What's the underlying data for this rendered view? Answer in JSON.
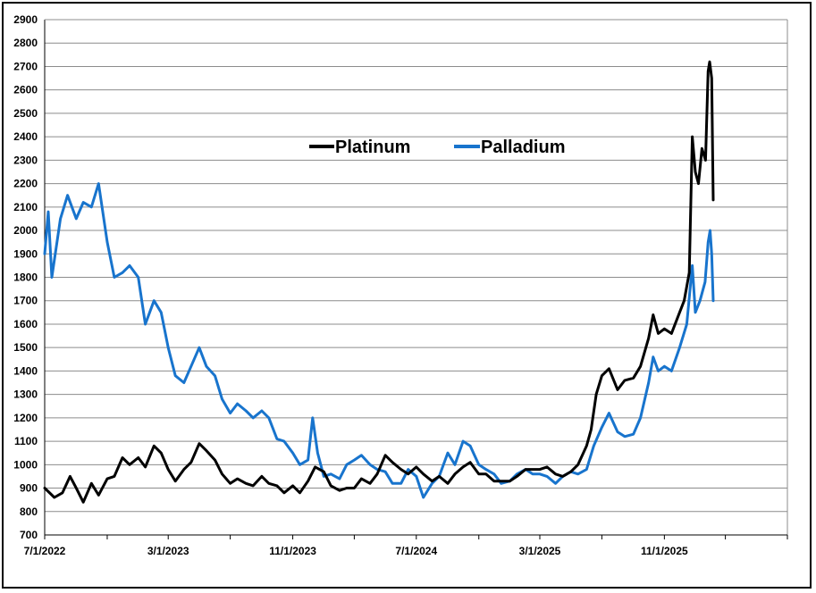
{
  "chart_data": {
    "type": "line",
    "title": "",
    "xlabel": "",
    "ylabel": "",
    "ylim": [
      700,
      2900
    ],
    "xlim": [
      "2022-07-01",
      "2026-07-01"
    ],
    "y_ticks": [
      "700",
      "800",
      "900",
      "1000",
      "1100",
      "1200",
      "1300",
      "1400",
      "1500",
      "1600",
      "1700",
      "1800",
      "1900",
      "2000",
      "2100",
      "2200",
      "2300",
      "2400",
      "2500",
      "2600",
      "2700",
      "2800",
      "2900"
    ],
    "x_ticks": [
      "7/1/2022",
      "3/1/2023",
      "11/1/2023",
      "7/1/2024",
      "3/1/2025",
      "11/1/2025"
    ],
    "grid": "horizontal",
    "legend": "top-center",
    "series": [
      {
        "name": "Platinum",
        "color": "#000000",
        "points": [
          [
            "2022-07-01",
            900
          ],
          [
            "2022-07-20",
            860
          ],
          [
            "2022-08-05",
            880
          ],
          [
            "2022-08-20",
            950
          ],
          [
            "2022-09-01",
            900
          ],
          [
            "2022-09-15",
            840
          ],
          [
            "2022-10-01",
            920
          ],
          [
            "2022-10-15",
            870
          ],
          [
            "2022-11-01",
            940
          ],
          [
            "2022-11-15",
            950
          ],
          [
            "2022-12-01",
            1030
          ],
          [
            "2022-12-15",
            1000
          ],
          [
            "2023-01-01",
            1030
          ],
          [
            "2023-01-15",
            990
          ],
          [
            "2023-02-01",
            1080
          ],
          [
            "2023-02-15",
            1050
          ],
          [
            "2023-03-01",
            980
          ],
          [
            "2023-03-15",
            930
          ],
          [
            "2023-04-01",
            980
          ],
          [
            "2023-04-15",
            1010
          ],
          [
            "2023-05-01",
            1090
          ],
          [
            "2023-05-15",
            1060
          ],
          [
            "2023-06-01",
            1020
          ],
          [
            "2023-06-15",
            960
          ],
          [
            "2023-07-01",
            920
          ],
          [
            "2023-07-15",
            940
          ],
          [
            "2023-08-01",
            920
          ],
          [
            "2023-08-15",
            910
          ],
          [
            "2023-09-01",
            950
          ],
          [
            "2023-09-15",
            920
          ],
          [
            "2023-10-01",
            910
          ],
          [
            "2023-10-15",
            880
          ],
          [
            "2023-11-01",
            910
          ],
          [
            "2023-11-15",
            880
          ],
          [
            "2023-12-01",
            930
          ],
          [
            "2023-12-15",
            990
          ],
          [
            "2024-01-01",
            970
          ],
          [
            "2024-01-15",
            910
          ],
          [
            "2024-02-01",
            890
          ],
          [
            "2024-02-15",
            900
          ],
          [
            "2024-03-01",
            900
          ],
          [
            "2024-03-15",
            940
          ],
          [
            "2024-04-01",
            920
          ],
          [
            "2024-04-15",
            960
          ],
          [
            "2024-05-01",
            1040
          ],
          [
            "2024-05-15",
            1010
          ],
          [
            "2024-06-01",
            980
          ],
          [
            "2024-06-15",
            960
          ],
          [
            "2024-07-01",
            990
          ],
          [
            "2024-07-15",
            960
          ],
          [
            "2024-08-01",
            930
          ],
          [
            "2024-08-15",
            950
          ],
          [
            "2024-09-01",
            920
          ],
          [
            "2024-09-15",
            960
          ],
          [
            "2024-10-01",
            990
          ],
          [
            "2024-10-15",
            1010
          ],
          [
            "2024-11-01",
            960
          ],
          [
            "2024-11-15",
            960
          ],
          [
            "2024-12-01",
            930
          ],
          [
            "2024-12-15",
            930
          ],
          [
            "2025-01-01",
            930
          ],
          [
            "2025-01-15",
            950
          ],
          [
            "2025-02-01",
            980
          ],
          [
            "2025-02-15",
            980
          ],
          [
            "2025-03-01",
            980
          ],
          [
            "2025-03-15",
            990
          ],
          [
            "2025-04-01",
            960
          ],
          [
            "2025-04-15",
            950
          ],
          [
            "2025-05-01",
            970
          ],
          [
            "2025-05-15",
            1000
          ],
          [
            "2025-06-01",
            1080
          ],
          [
            "2025-06-10",
            1150
          ],
          [
            "2025-06-20",
            1300
          ],
          [
            "2025-07-01",
            1380
          ],
          [
            "2025-07-15",
            1410
          ],
          [
            "2025-08-01",
            1320
          ],
          [
            "2025-08-15",
            1360
          ],
          [
            "2025-09-01",
            1370
          ],
          [
            "2025-09-15",
            1420
          ],
          [
            "2025-10-01",
            1540
          ],
          [
            "2025-10-10",
            1640
          ],
          [
            "2025-10-20",
            1560
          ],
          [
            "2025-11-01",
            1580
          ],
          [
            "2025-11-15",
            1560
          ],
          [
            "2025-12-01",
            1650
          ],
          [
            "2025-12-10",
            1700
          ],
          [
            "2025-12-20",
            1820
          ],
          [
            "2025-12-26",
            2400
          ],
          [
            "2026-01-01",
            2250
          ],
          [
            "2026-01-07",
            2200
          ],
          [
            "2026-01-14",
            2350
          ],
          [
            "2026-01-21",
            2300
          ],
          [
            "2026-01-26",
            2680
          ],
          [
            "2026-01-29",
            2720
          ],
          [
            "2026-02-02",
            2650
          ],
          [
            "2026-02-05",
            2130
          ]
        ]
      },
      {
        "name": "Palladium",
        "color": "#1874cd",
        "points": [
          [
            "2022-07-01",
            1900
          ],
          [
            "2022-07-08",
            2080
          ],
          [
            "2022-07-15",
            1800
          ],
          [
            "2022-08-01",
            2050
          ],
          [
            "2022-08-15",
            2150
          ],
          [
            "2022-09-01",
            2050
          ],
          [
            "2022-09-15",
            2120
          ],
          [
            "2022-10-01",
            2100
          ],
          [
            "2022-10-15",
            2200
          ],
          [
            "2022-11-01",
            1950
          ],
          [
            "2022-11-15",
            1800
          ],
          [
            "2022-12-01",
            1820
          ],
          [
            "2022-12-15",
            1850
          ],
          [
            "2023-01-01",
            1800
          ],
          [
            "2023-01-15",
            1600
          ],
          [
            "2023-02-01",
            1700
          ],
          [
            "2023-02-15",
            1650
          ],
          [
            "2023-03-01",
            1500
          ],
          [
            "2023-03-15",
            1380
          ],
          [
            "2023-04-01",
            1350
          ],
          [
            "2023-04-15",
            1420
          ],
          [
            "2023-05-01",
            1500
          ],
          [
            "2023-05-15",
            1420
          ],
          [
            "2023-06-01",
            1380
          ],
          [
            "2023-06-15",
            1280
          ],
          [
            "2023-07-01",
            1220
          ],
          [
            "2023-07-15",
            1260
          ],
          [
            "2023-08-01",
            1230
          ],
          [
            "2023-08-15",
            1200
          ],
          [
            "2023-09-01",
            1230
          ],
          [
            "2023-09-15",
            1200
          ],
          [
            "2023-10-01",
            1110
          ],
          [
            "2023-10-15",
            1100
          ],
          [
            "2023-11-01",
            1050
          ],
          [
            "2023-11-15",
            1000
          ],
          [
            "2023-12-01",
            1020
          ],
          [
            "2023-12-10",
            1200
          ],
          [
            "2023-12-20",
            1050
          ],
          [
            "2024-01-01",
            950
          ],
          [
            "2024-01-15",
            960
          ],
          [
            "2024-02-01",
            940
          ],
          [
            "2024-02-15",
            1000
          ],
          [
            "2024-03-01",
            1020
          ],
          [
            "2024-03-15",
            1040
          ],
          [
            "2024-04-01",
            1000
          ],
          [
            "2024-04-15",
            980
          ],
          [
            "2024-05-01",
            970
          ],
          [
            "2024-05-15",
            920
          ],
          [
            "2024-06-01",
            920
          ],
          [
            "2024-06-15",
            980
          ],
          [
            "2024-07-01",
            950
          ],
          [
            "2024-07-15",
            860
          ],
          [
            "2024-08-01",
            920
          ],
          [
            "2024-08-15",
            950
          ],
          [
            "2024-09-01",
            1050
          ],
          [
            "2024-09-15",
            1000
          ],
          [
            "2024-10-01",
            1100
          ],
          [
            "2024-10-15",
            1080
          ],
          [
            "2024-11-01",
            1000
          ],
          [
            "2024-11-15",
            980
          ],
          [
            "2024-12-01",
            960
          ],
          [
            "2024-12-15",
            920
          ],
          [
            "2025-01-01",
            930
          ],
          [
            "2025-01-15",
            960
          ],
          [
            "2025-02-01",
            980
          ],
          [
            "2025-02-15",
            960
          ],
          [
            "2025-03-01",
            960
          ],
          [
            "2025-03-15",
            950
          ],
          [
            "2025-04-01",
            920
          ],
          [
            "2025-04-15",
            950
          ],
          [
            "2025-05-01",
            970
          ],
          [
            "2025-05-15",
            960
          ],
          [
            "2025-06-01",
            980
          ],
          [
            "2025-06-15",
            1080
          ],
          [
            "2025-07-01",
            1160
          ],
          [
            "2025-07-15",
            1220
          ],
          [
            "2025-08-01",
            1140
          ],
          [
            "2025-08-15",
            1120
          ],
          [
            "2025-09-01",
            1130
          ],
          [
            "2025-09-15",
            1200
          ],
          [
            "2025-10-01",
            1350
          ],
          [
            "2025-10-10",
            1460
          ],
          [
            "2025-10-20",
            1400
          ],
          [
            "2025-11-01",
            1420
          ],
          [
            "2025-11-15",
            1400
          ],
          [
            "2025-12-01",
            1500
          ],
          [
            "2025-12-15",
            1600
          ],
          [
            "2025-12-26",
            1850
          ],
          [
            "2026-01-01",
            1650
          ],
          [
            "2026-01-10",
            1700
          ],
          [
            "2026-01-20",
            1780
          ],
          [
            "2026-01-26",
            1950
          ],
          [
            "2026-01-30",
            2000
          ],
          [
            "2026-02-02",
            1900
          ],
          [
            "2026-02-05",
            1700
          ]
        ]
      }
    ]
  }
}
